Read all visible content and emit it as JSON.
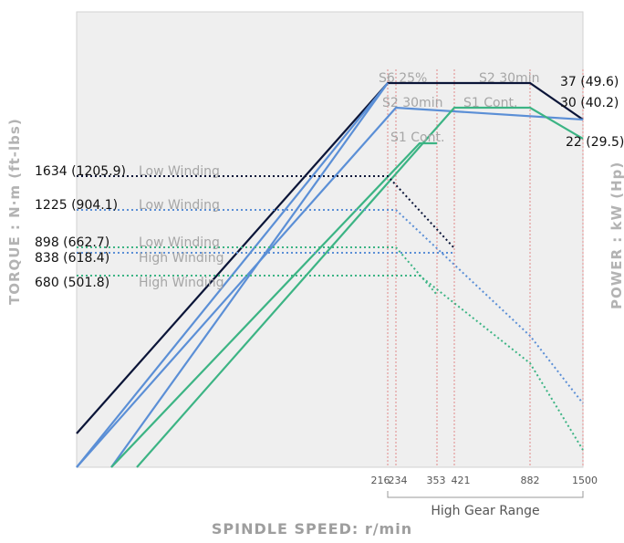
{
  "chart_data": {
    "type": "line",
    "title": "",
    "xlabel": "SPINDLE SPEED: r/min",
    "ylabel_left": "TORQUE : N·m (ft-lbs)",
    "ylabel_right": "POWER : kW (Hp)",
    "x_ticks": [
      "216",
      "234",
      "353",
      "421",
      "882",
      "1500"
    ],
    "range_label": "High Gear Range",
    "grid": false,
    "colors": {
      "navy": "#0b1538",
      "blue": "#5b8fd6",
      "green": "#3cb484",
      "gray_text": "#a6a6a6",
      "ref_line": "#e08a8a",
      "panel": "#efefef"
    },
    "power_series": [
      {
        "name": "S6 25%",
        "color": "#0b1538",
        "x": [
          0,
          216,
          882
        ],
        "y": [
          0,
          37,
          37
        ]
      },
      {
        "name": "S2 30min",
        "color": "#5b8fd6",
        "x": [
          0,
          234,
          882,
          1500
        ],
        "y": [
          0,
          37,
          37,
          30
        ]
      },
      {
        "name": "S2 30min",
        "color": "#5b8fd6",
        "x": [
          0,
          234,
          882,
          1500
        ],
        "y": [
          0,
          30,
          30,
          30
        ]
      },
      {
        "name": "S1 Cont.",
        "color": "#3cb484",
        "x": [
          0,
          353,
          421
        ],
        "y": [
          0,
          22,
          22
        ]
      },
      {
        "name": "S1 Cont.",
        "color": "#3cb484",
        "x": [
          0,
          421,
          882,
          1500
        ],
        "y": [
          0,
          30,
          30,
          22
        ]
      }
    ],
    "torque_series": [
      {
        "label": "1634 (1205.9)",
        "winding": "Low Winding",
        "color": "#0b1538",
        "value": 1634,
        "x": [
          0,
          216,
          421
        ],
        "y": [
          1634,
          1634,
          838
        ]
      },
      {
        "label": "1225 (904.1)",
        "winding": "Low Winding",
        "color": "#5b8fd6",
        "value": 1225,
        "x": [
          0,
          234,
          882,
          1500
        ],
        "y": [
          1225,
          1225,
          680,
          0
        ]
      },
      {
        "label": "898 (662.7)",
        "winding": "Low Winding",
        "color": "#3cb484",
        "value": 898,
        "x": [
          0,
          234,
          353
        ],
        "y": [
          898,
          898,
          680
        ]
      },
      {
        "label": "838 (618.4)",
        "winding": "High Winding",
        "color": "#5b8fd6",
        "value": 838,
        "x": [
          0,
          421,
          882
        ],
        "y": [
          838,
          838,
          0
        ]
      },
      {
        "label": "680 (501.8)",
        "winding": "High Winding",
        "color": "#3cb484",
        "value": 680,
        "x": [
          0,
          421,
          882,
          1500
        ],
        "y": [
          680,
          680,
          0,
          0
        ]
      }
    ],
    "power_labels": [
      "37 (49.6)",
      "30 (40.2)",
      "22 (29.5)"
    ],
    "curve_labels": [
      "S6 25%",
      "S2 30min",
      "S2 30min",
      "S1 Cont.",
      "S1 Cont."
    ]
  }
}
